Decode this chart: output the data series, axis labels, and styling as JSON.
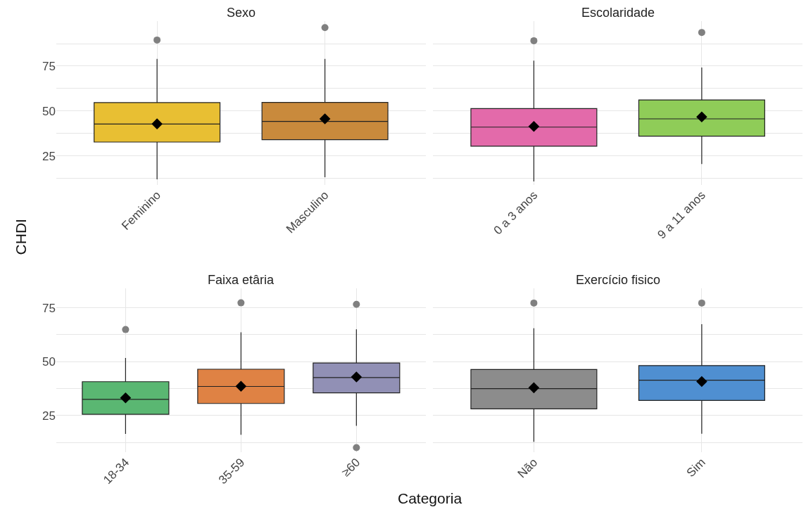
{
  "chart_data": [
    {
      "type": "box",
      "title": "Sexo",
      "ylabel": "CHDI",
      "categories": [
        "Feminino",
        "Masculino"
      ],
      "colors": [
        "#e8bf33",
        "#c98a3c"
      ],
      "boxes": [
        {
          "low": 12.1,
          "q1": 32.8,
          "median": 42.8,
          "q3": 54.7,
          "high": 79,
          "mean": 42.9,
          "outliers": [
            89.5
          ]
        },
        {
          "low": 13.3,
          "q1": 34.1,
          "median": 44.3,
          "q3": 54.8,
          "high": 79,
          "mean": 45.7,
          "outliers": [
            96.4
          ]
        }
      ],
      "ylim": [
        9,
        100
      ],
      "yticks": [
        {
          "value": 12.5,
          "label": null
        },
        25,
        {
          "value": 37.5,
          "label": null
        },
        50,
        {
          "value": 62.5,
          "label": null
        },
        75,
        {
          "value": 87.5,
          "label": null
        }
      ],
      "grid": true,
      "marker": "diamond"
    },
    {
      "type": "box",
      "title": "Escolaridade",
      "categories": [
        "0 a 3 anos",
        "9 a 11 anos"
      ],
      "colors": [
        "#e36aaa",
        "#8fcc58"
      ],
      "boxes": [
        {
          "low": 10.9,
          "q1": 30.5,
          "median": 41.1,
          "q3": 51.4,
          "high": 78,
          "mean": 41.5,
          "outliers": [
            89.1
          ]
        },
        {
          "low": 20.6,
          "q1": 36.1,
          "median": 45.7,
          "q3": 56.2,
          "high": 74.2,
          "mean": 46.8,
          "outliers": [
            93.7
          ]
        }
      ],
      "ylim": [
        9,
        100
      ],
      "yticks": [
        {
          "value": 12.5,
          "label": null
        },
        25,
        {
          "value": 37.5,
          "label": null
        },
        50,
        {
          "value": 62.5,
          "label": null
        },
        75,
        {
          "value": 87.5,
          "label": null
        }
      ],
      "grid": true,
      "marker": "diamond",
      "tick_labels": "x"
    },
    {
      "type": "box",
      "title": "Faixa etâria",
      "xlabel": "Categoria",
      "categories": [
        "18-34",
        "35-59",
        "≥60"
      ],
      "colors": [
        "#5ab772",
        "#df8244",
        "#9190b5"
      ],
      "boxes": [
        {
          "low": 16.5,
          "q1": 25.6,
          "median": 32.5,
          "q3": 40.7,
          "high": 51.7,
          "mean": 33.2,
          "outliers": [
            64.9
          ]
        },
        {
          "low": 16.1,
          "q1": 30.6,
          "median": 38.5,
          "q3": 46.5,
          "high": 63.6,
          "mean": 38.6,
          "outliers": [
            77.3
          ]
        },
        {
          "low": 20.2,
          "q1": 35.5,
          "median": 42.6,
          "q3": 49.4,
          "high": 65.0,
          "mean": 42.9,
          "outliers": [
            76.6,
            10.1
          ]
        }
      ],
      "ylim": [
        8,
        84
      ],
      "yticks": [
        {
          "value": 12.5,
          "label": null
        },
        25,
        {
          "value": 37.5,
          "label": null
        },
        50,
        {
          "value": 62.5,
          "label": null
        },
        75
      ],
      "grid": true,
      "marker": "diamond"
    },
    {
      "type": "box",
      "title": "Exercício fisico",
      "categories": [
        "Não",
        "Sim"
      ],
      "colors": [
        "#8c8c8c",
        "#4f8fd1"
      ],
      "boxes": [
        {
          "low": 12.8,
          "q1": 28.1,
          "median": 37.5,
          "q3": 46.4,
          "high": 65.5,
          "mean": 37.9,
          "outliers": [
            77.2
          ]
        },
        {
          "low": 16.6,
          "q1": 32.0,
          "median": 41.4,
          "q3": 48.2,
          "high": 67.4,
          "mean": 40.8,
          "outliers": [
            77.2
          ]
        }
      ],
      "ylim": [
        8,
        84
      ],
      "yticks": [
        {
          "value": 12.5,
          "label": null
        },
        25,
        {
          "value": 37.5,
          "label": null
        },
        50,
        {
          "value": 62.5,
          "label": null
        },
        75
      ],
      "grid": true,
      "marker": "diamond",
      "tick_labels": "x"
    }
  ]
}
